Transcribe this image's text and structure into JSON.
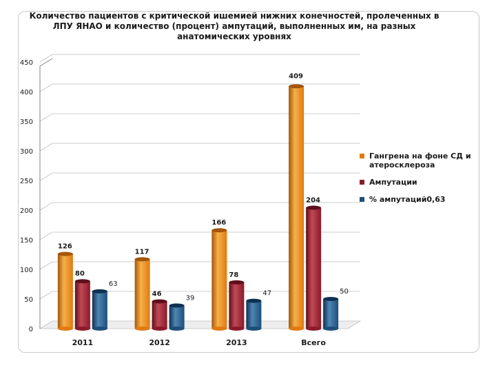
{
  "colors": {
    "series": [
      "#e07a10",
      "#8b1a2a",
      "#1e4f7a"
    ],
    "series_light": [
      "#f6b049",
      "#c04a55",
      "#4f86b4"
    ],
    "series_dark": [
      "#a55508",
      "#5e0e1b",
      "#0f3050"
    ],
    "grid": "#bdbdbd",
    "axis": "#808080",
    "text": "#1a1a1a"
  },
  "chart_data": {
    "type": "bar",
    "title": "Количество пациентов с критической ишемией нижних конечностей, пролеченных в ЛПУ ЯНАО и количество (процент) ампутаций, выполненных им, на разных анатомических уровнях",
    "categories": [
      "2011",
      "2012",
      "2013",
      "Всего"
    ],
    "series": [
      {
        "name": "Гангрена на фоне СД и атеросклероза",
        "values": [
          126,
          117,
          166,
          409
        ],
        "labels": [
          "126",
          "117",
          "166",
          "409"
        ]
      },
      {
        "name": "Ампутации",
        "values": [
          80,
          46,
          78,
          204
        ],
        "labels": [
          "80",
          "46",
          "78",
          "204"
        ]
      },
      {
        "name": "% ампутаций0,63",
        "values": [
          63,
          39,
          47,
          50
        ],
        "labels": [
          "63",
          "39",
          "47",
          "50"
        ]
      }
    ],
    "ylim": [
      0,
      450
    ],
    "yticks": [
      0,
      50,
      100,
      150,
      200,
      250,
      300,
      350,
      400,
      450
    ],
    "grid": true,
    "legend": "right"
  }
}
